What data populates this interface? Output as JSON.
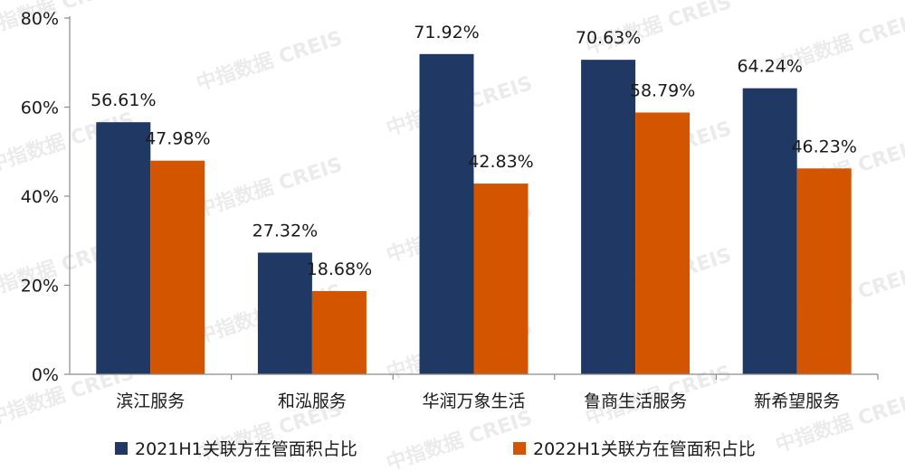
{
  "watermark_text": "中指数据 CREIS",
  "colors": {
    "series1": "#1f3864",
    "series2": "#d45500",
    "axis": "#8c8c8c"
  },
  "chart_data": {
    "type": "bar",
    "categories": [
      "滨江服务",
      "和泓服务",
      "华润万象生活",
      "鲁商生活服务",
      "新希望服务"
    ],
    "series": [
      {
        "name": "2021H1关联方在管面积占比",
        "values": [
          56.61,
          27.32,
          71.92,
          70.63,
          64.24
        ],
        "labels": [
          "56.61%",
          "27.32%",
          "71.92%",
          "70.63%",
          "64.24%"
        ]
      },
      {
        "name": "2022H1关联方在管面积占比",
        "values": [
          47.98,
          18.68,
          42.83,
          58.79,
          46.23
        ],
        "labels": [
          "47.98%",
          "18.68%",
          "42.83%",
          "58.79%",
          "46.23%"
        ]
      }
    ],
    "ylim": [
      0,
      80
    ],
    "yticks": [
      0,
      20,
      40,
      60,
      80
    ],
    "ytick_labels": [
      "0%",
      "20%",
      "40%",
      "60%",
      "80%"
    ],
    "legend_position": "bottom",
    "grid": false
  }
}
